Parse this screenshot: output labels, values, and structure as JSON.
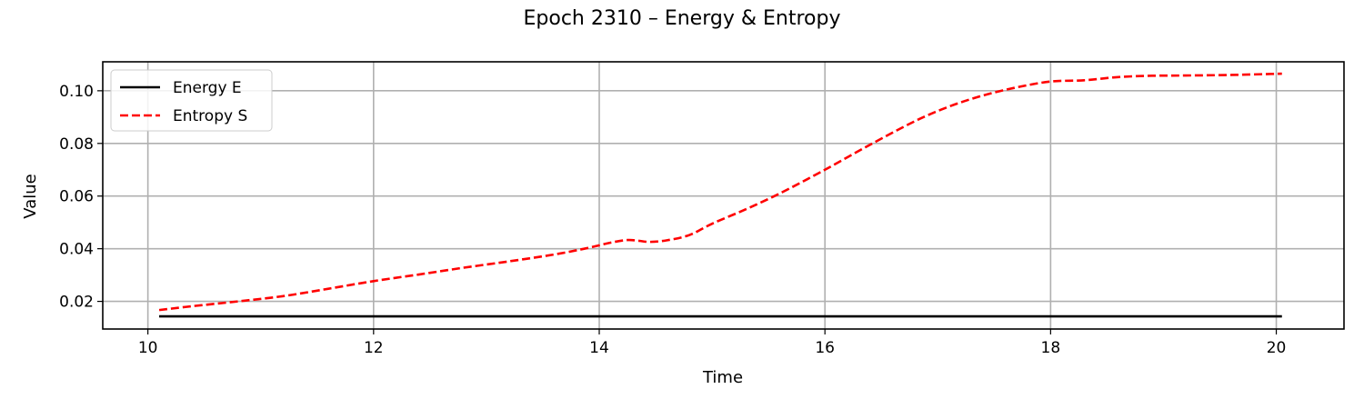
{
  "chart_data": {
    "type": "line",
    "title": "Epoch 2310 – Energy & Entropy",
    "xlabel": "Time",
    "ylabel": "Value",
    "xlim": [
      9.6,
      20.6
    ],
    "ylim": [
      0.0095,
      0.111
    ],
    "xticks": [
      10,
      12,
      14,
      16,
      18,
      20
    ],
    "xtick_labels": [
      "10",
      "12",
      "14",
      "16",
      "18",
      "20"
    ],
    "yticks": [
      0.02,
      0.04,
      0.06,
      0.08,
      0.1
    ],
    "ytick_labels": [
      "0.02",
      "0.04",
      "0.06",
      "0.08",
      "0.10"
    ],
    "grid": true,
    "legend_position": "top-left",
    "series": [
      {
        "name": "Energy E",
        "color": "#000000",
        "style": "solid",
        "x": [
          10.1,
          20.05
        ],
        "y": [
          0.0143,
          0.0143
        ]
      },
      {
        "name": "Entropy S",
        "color": "#ff0000",
        "style": "dashed",
        "x": [
          10.1,
          10.4,
          10.8,
          11.2,
          11.6,
          12.0,
          12.4,
          12.8,
          13.2,
          13.6,
          13.9,
          14.1,
          14.25,
          14.35,
          14.45,
          14.6,
          14.8,
          15.0,
          15.3,
          15.6,
          16.0,
          16.4,
          16.8,
          17.1,
          17.4,
          17.7,
          18.0,
          18.3,
          18.6,
          18.9,
          19.2,
          19.6,
          20.05
        ],
        "y": [
          0.0167,
          0.0182,
          0.02,
          0.022,
          0.0248,
          0.0277,
          0.0302,
          0.0328,
          0.0352,
          0.0378,
          0.0403,
          0.0423,
          0.0433,
          0.043,
          0.0426,
          0.0432,
          0.0452,
          0.0495,
          0.055,
          0.061,
          0.07,
          0.0795,
          0.0885,
          0.094,
          0.0982,
          0.1013,
          0.1035,
          0.104,
          0.1052,
          0.1057,
          0.1058,
          0.106,
          0.1065
        ]
      }
    ]
  }
}
